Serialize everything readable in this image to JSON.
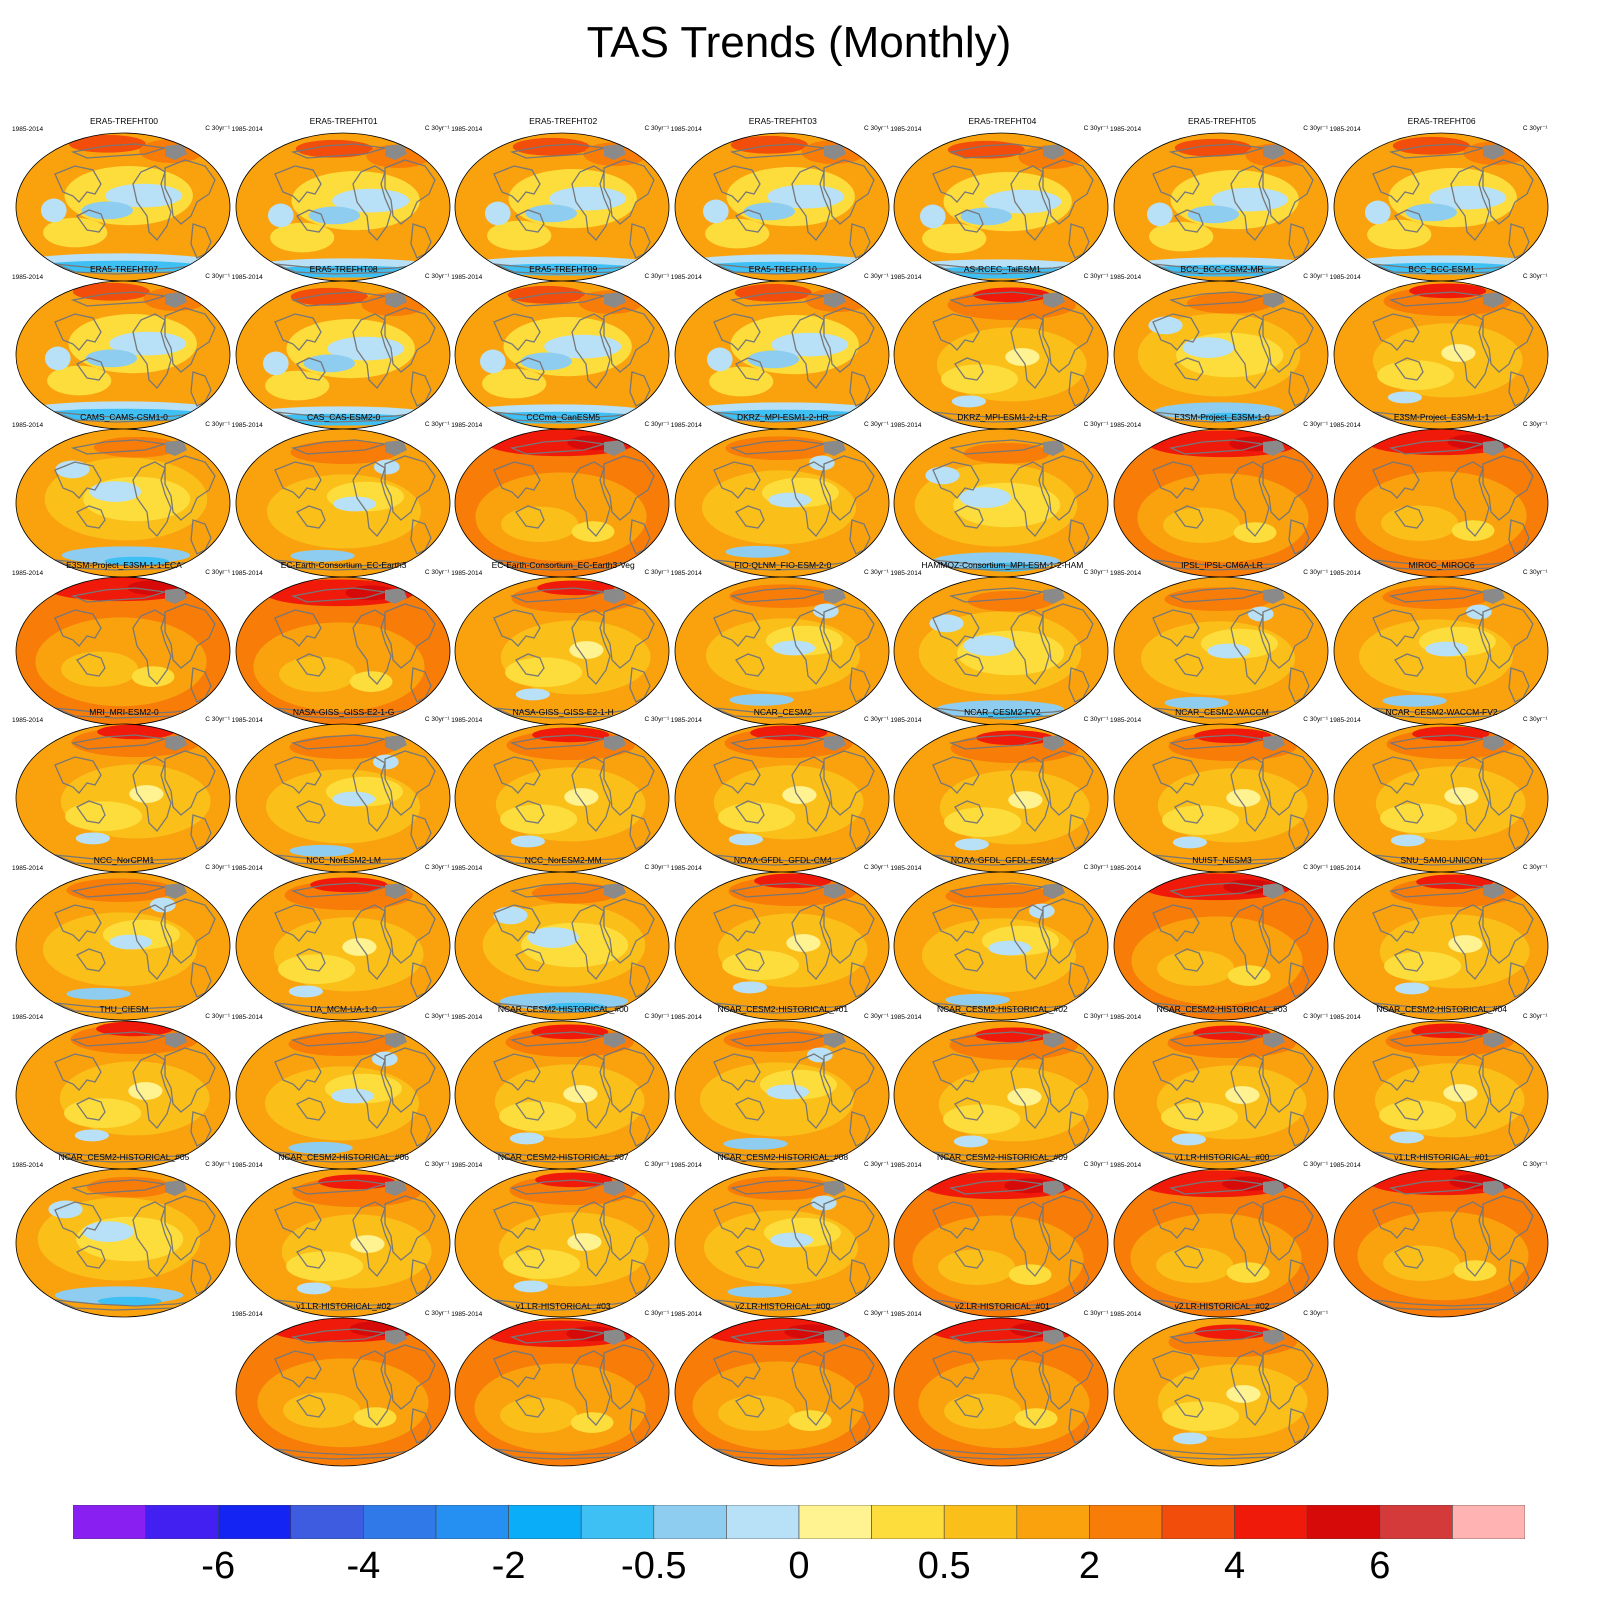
{
  "title": "TAS Trends (Monthly)",
  "panel_years": "1985-2014",
  "panel_units": "C 30yr⁻¹",
  "panels": [
    {
      "name": "ERA5-TREFHT00",
      "style": "era5"
    },
    {
      "name": "ERA5-TREFHT01",
      "style": "era5"
    },
    {
      "name": "ERA5-TREFHT02",
      "style": "era5"
    },
    {
      "name": "ERA5-TREFHT03",
      "style": "era5"
    },
    {
      "name": "ERA5-TREFHT04",
      "style": "era5"
    },
    {
      "name": "ERA5-TREFHT05",
      "style": "era5"
    },
    {
      "name": "ERA5-TREFHT06",
      "style": "era5"
    },
    {
      "name": "ERA5-TREFHT07",
      "style": "era5"
    },
    {
      "name": "ERA5-TREFHT08",
      "style": "era5"
    },
    {
      "name": "ERA5-TREFHT09",
      "style": "era5"
    },
    {
      "name": "ERA5-TREFHT10",
      "style": "era5"
    },
    {
      "name": "AS-RCEC_TaiESM1",
      "style": "warm"
    },
    {
      "name": "BCC_BCC-CSM2-MR",
      "style": "cool"
    },
    {
      "name": "BCC_BCC-ESM1",
      "style": "warm"
    },
    {
      "name": "CAMS_CAMS-CSM1-0",
      "style": "cool"
    },
    {
      "name": "CAS_CAS-ESM2-0",
      "style": "mixed"
    },
    {
      "name": "CCCma_CanESM5",
      "style": "hot"
    },
    {
      "name": "DKRZ_MPI-ESM1-2-HR",
      "style": "mixed"
    },
    {
      "name": "DKRZ_MPI-ESM1-2-LR",
      "style": "cool"
    },
    {
      "name": "E3SM-Project_E3SM-1-0",
      "style": "hot"
    },
    {
      "name": "E3SM-Project_E3SM-1-1",
      "style": "hot"
    },
    {
      "name": "E3SM-Project_E3SM-1-1-ECA",
      "style": "hot"
    },
    {
      "name": "EC-Earth-Consortium_EC-Earth3",
      "style": "hot"
    },
    {
      "name": "EC-Earth-Consortium_EC-Earth3-Veg",
      "style": "warm"
    },
    {
      "name": "FIO-QLNM_FIO-ESM-2-0",
      "style": "mixed"
    },
    {
      "name": "HAMMOZ-Consortium_MPI-ESM-1-2-HAM",
      "style": "cool"
    },
    {
      "name": "IPSL_IPSL-CM6A-LR",
      "style": "mixed"
    },
    {
      "name": "MIROC_MIROC6",
      "style": "mixed"
    },
    {
      "name": "MRI_MRI-ESM2-0",
      "style": "warm"
    },
    {
      "name": "NASA-GISS_GISS-E2-1-G",
      "style": "mixed"
    },
    {
      "name": "NASA-GISS_GISS-E2-1-H",
      "style": "warm"
    },
    {
      "name": "NCAR_CESM2",
      "style": "warm"
    },
    {
      "name": "NCAR_CESM2-FV2",
      "style": "warm"
    },
    {
      "name": "NCAR_CESM2-WACCM",
      "style": "warm"
    },
    {
      "name": "NCAR_CESM2-WACCM-FV2",
      "style": "warm"
    },
    {
      "name": "NCC_NorCPM1",
      "style": "mixed"
    },
    {
      "name": "NCC_NorESM2-LM",
      "style": "warm"
    },
    {
      "name": "NCC_NorESM2-MM",
      "style": "cool"
    },
    {
      "name": "NOAA-GFDL_GFDL-CM4",
      "style": "warm"
    },
    {
      "name": "NOAA-GFDL_GFDL-ESM4",
      "style": "mixed"
    },
    {
      "name": "NUIST_NESM3",
      "style": "hot"
    },
    {
      "name": "SNU_SAM0-UNICON",
      "style": "warm"
    },
    {
      "name": "THU_CIESM",
      "style": "warm"
    },
    {
      "name": "UA_MCM-UA-1-0",
      "style": "mixed"
    },
    {
      "name": "NCAR_CESM2-HISTORICAL_#00",
      "style": "warm"
    },
    {
      "name": "NCAR_CESM2-HISTORICAL_#01",
      "style": "mixed"
    },
    {
      "name": "NCAR_CESM2-HISTORICAL_#02",
      "style": "warm"
    },
    {
      "name": "NCAR_CESM2-HISTORICAL_#03",
      "style": "warm"
    },
    {
      "name": "NCAR_CESM2-HISTORICAL_#04",
      "style": "warm"
    },
    {
      "name": "NCAR_CESM2-HISTORICAL_#05",
      "style": "cool"
    },
    {
      "name": "NCAR_CESM2-HISTORICAL_#06",
      "style": "warm"
    },
    {
      "name": "NCAR_CESM2-HISTORICAL_#07",
      "style": "warm"
    },
    {
      "name": "NCAR_CESM2-HISTORICAL_#08",
      "style": "mixed"
    },
    {
      "name": "NCAR_CESM2-HISTORICAL_#09",
      "style": "hot"
    },
    {
      "name": "v1.LR-HISTORICAL_#00",
      "style": "hot"
    },
    {
      "name": "v1.LR-HISTORICAL_#01",
      "style": "hot"
    },
    {
      "name": "v1.LR-HISTORICAL_#02",
      "style": "hot"
    },
    {
      "name": "v1.LR-HISTORICAL_#03",
      "style": "hot"
    },
    {
      "name": "v2.LR-HISTORICAL_#00",
      "style": "hot"
    },
    {
      "name": "v2.LR-HISTORICAL_#01",
      "style": "hot"
    },
    {
      "name": "v2.LR-HISTORICAL_#02",
      "style": "warm"
    }
  ],
  "colorbar": {
    "colors": [
      "#8a1ff2",
      "#4320f2",
      "#1424f2",
      "#3d5ce0",
      "#2f7ae8",
      "#268ff2",
      "#0aaef8",
      "#3fc0f5",
      "#8ecdf0",
      "#b8e0f6",
      "#fff391",
      "#fddd3c",
      "#fbbf1a",
      "#f9a20e",
      "#f87c08",
      "#f24d0a",
      "#ef1a0a",
      "#d70a0a",
      "#d43a3a",
      "#ffb3b3"
    ],
    "labels": [
      "-6",
      "-4",
      "-2",
      "-0.5",
      "0",
      "0.5",
      "2",
      "4",
      "6"
    ]
  },
  "chart_data": {
    "type": "heatmap",
    "title": "TAS Trends (Monthly)",
    "period": "1985-2014",
    "units": "C 30yr⁻¹",
    "colorbar_ticks": [
      "-6",
      "-4",
      "-2",
      "-0.5",
      "0",
      "0.5",
      "2",
      "4",
      "6"
    ],
    "n_panels": 61
  }
}
